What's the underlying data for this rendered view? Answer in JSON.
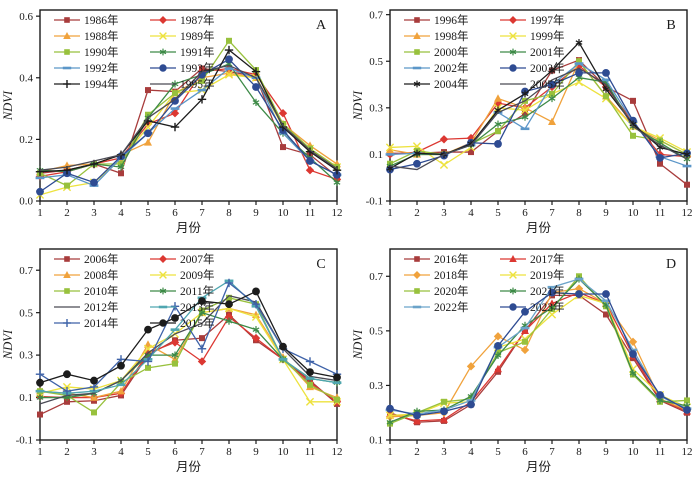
{
  "chart_data": [
    {
      "type": "line",
      "panel_label": "A",
      "xlabel": "月份",
      "ylabel": "NDVI",
      "x": [
        1,
        2,
        3,
        4,
        5,
        6,
        7,
        8,
        9,
        10,
        11,
        12
      ],
      "ylim": [
        0.0,
        0.62
      ],
      "yticks": [
        0.0,
        0.2,
        0.4,
        0.6
      ],
      "ytick_labels": [
        "0.0",
        "0.2",
        "0.4",
        "0.6"
      ],
      "xtick_labels": [
        "1",
        "2",
        "3",
        "4",
        "5",
        "6",
        "7",
        "8",
        "9",
        "10",
        "11",
        "12"
      ],
      "legend_position": "top-left",
      "legend_columns": 2,
      "grid": false,
      "series": [
        {
          "name": "1986年",
          "color": "#A83C3C",
          "marker": "square",
          "values": [
            0.09,
            0.1,
            0.12,
            0.09,
            0.36,
            0.355,
            0.43,
            0.42,
            0.405,
            0.175,
            0.15,
            0.08
          ]
        },
        {
          "name": "1987年",
          "color": "#DC3832",
          "marker": "diamond",
          "values": [
            0.08,
            0.095,
            0.12,
            0.14,
            0.25,
            0.285,
            0.42,
            0.43,
            0.41,
            0.285,
            0.1,
            0.07
          ]
        },
        {
          "name": "1988年",
          "color": "#F0A23C",
          "marker": "triangle",
          "values": [
            0.095,
            0.115,
            0.12,
            0.15,
            0.19,
            0.35,
            0.4,
            0.415,
            0.4,
            0.25,
            0.18,
            0.12
          ]
        },
        {
          "name": "1989年",
          "color": "#EDE23E",
          "marker": "x",
          "values": [
            0.02,
            0.045,
            0.06,
            0.135,
            0.24,
            0.35,
            0.36,
            0.41,
            0.4,
            0.24,
            0.17,
            0.11
          ]
        },
        {
          "name": "1990年",
          "color": "#98C13D",
          "marker": "square",
          "values": [
            0.09,
            0.05,
            0.12,
            0.12,
            0.28,
            0.35,
            0.39,
            0.52,
            0.425,
            0.25,
            0.17,
            0.11
          ]
        },
        {
          "name": "1991年",
          "color": "#3D8A47",
          "marker": "star",
          "values": [
            0.1,
            0.095,
            0.12,
            0.11,
            0.27,
            0.38,
            0.41,
            0.445,
            0.32,
            0.22,
            0.14,
            0.06
          ]
        },
        {
          "name": "1992年",
          "color": "#5B96C8",
          "marker": "dash",
          "values": [
            0.075,
            0.085,
            0.05,
            0.14,
            0.22,
            0.3,
            0.36,
            0.43,
            0.4,
            0.22,
            0.13,
            0.085
          ]
        },
        {
          "name": "1993年",
          "color": "#2E4B92",
          "marker": "circle",
          "values": [
            0.03,
            0.09,
            0.06,
            0.145,
            0.22,
            0.325,
            0.41,
            0.46,
            0.37,
            0.23,
            0.13,
            0.085
          ]
        },
        {
          "name": "1994年",
          "color": "#1C1C1C",
          "marker": "plus",
          "values": [
            0.095,
            0.1,
            0.12,
            0.15,
            0.26,
            0.24,
            0.33,
            0.49,
            0.42,
            0.24,
            0.16,
            0.1
          ]
        },
        {
          "name": "1995年",
          "color": "#4A4A55",
          "marker": "none",
          "values": [
            0.1,
            0.11,
            0.13,
            0.15,
            0.27,
            0.33,
            0.42,
            0.44,
            0.4,
            0.245,
            0.165,
            0.105
          ]
        }
      ]
    },
    {
      "type": "line",
      "panel_label": "B",
      "xlabel": "月份",
      "ylabel": "NDVI",
      "x": [
        1,
        2,
        3,
        4,
        5,
        6,
        7,
        8,
        9,
        10,
        11,
        12
      ],
      "ylim": [
        -0.1,
        0.72
      ],
      "yticks": [
        -0.1,
        0.1,
        0.3,
        0.5,
        0.7
      ],
      "ytick_labels": [
        "-0.1",
        "0.1",
        "0.3",
        "0.5",
        "0.7"
      ],
      "xtick_labels": [
        "1",
        "2",
        "3",
        "4",
        "5",
        "6",
        "7",
        "8",
        "9",
        "10",
        "11",
        "12"
      ],
      "legend_position": "top-left",
      "legend_columns": 2,
      "grid": false,
      "series": [
        {
          "name": "1996年",
          "color": "#A83C3C",
          "marker": "square",
          "values": [
            0.105,
            0.105,
            0.11,
            0.11,
            0.2,
            0.275,
            0.46,
            0.505,
            0.39,
            0.33,
            0.06,
            -0.03
          ]
        },
        {
          "name": "1997年",
          "color": "#DC3832",
          "marker": "diamond",
          "values": [
            0.1,
            0.11,
            0.165,
            0.17,
            0.32,
            0.3,
            0.39,
            0.48,
            0.39,
            0.24,
            0.1,
            0.09
          ]
        },
        {
          "name": "1998年",
          "color": "#F0A23C",
          "marker": "triangle",
          "values": [
            0.12,
            0.1,
            0.1,
            0.15,
            0.34,
            0.3,
            0.24,
            0.5,
            0.35,
            0.22,
            0.16,
            0.1
          ]
        },
        {
          "name": "1999年",
          "color": "#EDE23E",
          "marker": "x",
          "values": [
            0.13,
            0.135,
            0.055,
            0.13,
            0.3,
            0.29,
            0.36,
            0.41,
            0.34,
            0.22,
            0.17,
            0.11
          ]
        },
        {
          "name": "2000年",
          "color": "#98C13D",
          "marker": "square",
          "values": [
            0.06,
            0.115,
            0.1,
            0.145,
            0.2,
            0.33,
            0.36,
            0.5,
            0.35,
            0.18,
            0.16,
            0.1
          ]
        },
        {
          "name": "2001年",
          "color": "#3D8A47",
          "marker": "star",
          "values": [
            0.05,
            0.1,
            0.1,
            0.14,
            0.23,
            0.26,
            0.34,
            0.43,
            0.41,
            0.22,
            0.15,
            0.08
          ]
        },
        {
          "name": "2002年",
          "color": "#5B96C8",
          "marker": "dash",
          "values": [
            0.1,
            0.105,
            0.1,
            0.14,
            0.28,
            0.21,
            0.4,
            0.49,
            0.42,
            0.24,
            0.09,
            0.05
          ]
        },
        {
          "name": "2003年",
          "color": "#2E4B92",
          "marker": "circle",
          "values": [
            0.035,
            0.06,
            0.095,
            0.15,
            0.145,
            0.37,
            0.4,
            0.45,
            0.45,
            0.245,
            0.085,
            0.105
          ]
        },
        {
          "name": "2004年",
          "color": "#1C1C1C",
          "marker": "star",
          "values": [
            0.04,
            0.105,
            0.1,
            0.145,
            0.29,
            0.36,
            0.46,
            0.58,
            0.38,
            0.23,
            0.13,
            0.1
          ]
        },
        {
          "name": "2005年",
          "color": "#4A4A55",
          "marker": "none",
          "values": [
            0.05,
            0.035,
            0.1,
            0.14,
            0.28,
            0.33,
            0.42,
            0.47,
            0.4,
            0.22,
            0.14,
            0.08
          ]
        }
      ]
    },
    {
      "type": "line",
      "panel_label": "C",
      "xlabel": "月份",
      "ylabel": "NDVI",
      "x": [
        1,
        2,
        3,
        4,
        5,
        6,
        7,
        8,
        9,
        10,
        11,
        12
      ],
      "ylim": [
        -0.1,
        0.8
      ],
      "yticks": [
        -0.1,
        0.1,
        0.3,
        0.5,
        0.7
      ],
      "ytick_labels": [
        "-0.1",
        "0.1",
        "0.3",
        "0.5",
        "0.7"
      ],
      "xtick_labels": [
        "1",
        "2",
        "3",
        "4",
        "5",
        "6",
        "7",
        "8",
        "9",
        "10",
        "11",
        "12"
      ],
      "legend_position": "top-left",
      "legend_columns": 2,
      "grid": false,
      "series": [
        {
          "name": "2006年",
          "color": "#A83C3C",
          "marker": "square",
          "values": [
            0.02,
            0.08,
            0.085,
            0.11,
            0.3,
            0.37,
            0.38,
            0.49,
            0.37,
            0.28,
            0.18,
            0.07
          ]
        },
        {
          "name": "2007年",
          "color": "#DC3832",
          "marker": "diamond",
          "values": [
            0.105,
            0.1,
            0.1,
            0.12,
            0.31,
            0.36,
            0.27,
            0.48,
            0.38,
            0.28,
            0.17,
            0.08
          ]
        },
        {
          "name": "2008年",
          "color": "#F0A23C",
          "marker": "triangle",
          "values": [
            0.13,
            0.12,
            0.1,
            0.13,
            0.35,
            0.28,
            0.5,
            0.52,
            0.49,
            0.29,
            0.15,
            0.1
          ]
        },
        {
          "name": "2009年",
          "color": "#EDE23E",
          "marker": "x",
          "values": [
            0.12,
            0.15,
            0.14,
            0.18,
            0.33,
            0.4,
            0.5,
            0.52,
            0.48,
            0.28,
            0.08,
            0.08
          ]
        },
        {
          "name": "2010年",
          "color": "#98C13D",
          "marker": "square",
          "values": [
            0.13,
            0.11,
            0.03,
            0.17,
            0.24,
            0.26,
            0.51,
            0.57,
            0.54,
            0.28,
            0.16,
            0.09
          ]
        },
        {
          "name": "2011年",
          "color": "#3D8A47",
          "marker": "star",
          "values": [
            0.1,
            0.1,
            0.12,
            0.18,
            0.3,
            0.3,
            0.5,
            0.46,
            0.42,
            0.28,
            0.19,
            0.17
          ]
        },
        {
          "name": "2012年",
          "color": "#4A4A55",
          "marker": "none",
          "values": [
            0.07,
            0.11,
            0.12,
            0.18,
            0.31,
            0.4,
            0.45,
            0.58,
            0.55,
            0.33,
            0.2,
            0.18
          ]
        },
        {
          "name": "2013年",
          "color": "#4FA6B0",
          "marker": "dash",
          "values": [
            0.13,
            0.12,
            0.13,
            0.16,
            0.28,
            0.42,
            0.57,
            0.65,
            0.53,
            0.28,
            0.19,
            0.17
          ]
        },
        {
          "name": "2014年",
          "color": "#3E62A8",
          "marker": "plus",
          "values": [
            0.21,
            0.13,
            0.15,
            0.28,
            0.27,
            0.53,
            0.33,
            0.64,
            0.54,
            0.33,
            0.27,
            0.21
          ]
        },
        {
          "name": "2015年",
          "color": "#1C1C1C",
          "marker": "circle",
          "values": [
            0.17,
            0.21,
            0.18,
            0.25,
            0.42,
            0.475,
            0.555,
            0.54,
            0.6,
            0.34,
            0.22,
            0.195
          ]
        }
      ]
    },
    {
      "type": "line",
      "panel_label": "D",
      "xlabel": "月份",
      "ylabel": "NDVI",
      "x": [
        1,
        2,
        3,
        4,
        5,
        6,
        7,
        8,
        9,
        10,
        11,
        12
      ],
      "ylim": [
        0.1,
        0.8
      ],
      "yticks": [
        0.1,
        0.3,
        0.5,
        0.7
      ],
      "ytick_labels": [
        "0.1",
        "0.3",
        "0.5",
        "0.7"
      ],
      "xtick_labels": [
        "1",
        "2",
        "3",
        "4",
        "5",
        "6",
        "7",
        "8",
        "9",
        "10",
        "11",
        "12"
      ],
      "legend_position": "top-left",
      "legend_columns": 2,
      "grid": false,
      "series": [
        {
          "name": "2016年",
          "color": "#A83C3C",
          "marker": "square",
          "values": [
            0.2,
            0.165,
            0.17,
            0.23,
            0.35,
            0.5,
            0.63,
            0.63,
            0.56,
            0.4,
            0.245,
            0.2
          ]
        },
        {
          "name": "2017年",
          "color": "#DC3832",
          "marker": "triangle",
          "values": [
            0.195,
            0.17,
            0.175,
            0.24,
            0.36,
            0.5,
            0.6,
            0.64,
            0.6,
            0.41,
            0.25,
            0.205
          ]
        },
        {
          "name": "2018年",
          "color": "#F0A23C",
          "marker": "diamond",
          "values": [
            0.185,
            0.19,
            0.2,
            0.37,
            0.48,
            0.43,
            0.64,
            0.655,
            0.6,
            0.46,
            0.25,
            0.21
          ]
        },
        {
          "name": "2019年",
          "color": "#EDE23E",
          "marker": "x",
          "values": [
            0.19,
            0.195,
            0.235,
            0.24,
            0.44,
            0.47,
            0.56,
            0.63,
            0.6,
            0.36,
            0.265,
            0.22
          ]
        },
        {
          "name": "2020年",
          "color": "#98C13D",
          "marker": "square",
          "values": [
            0.16,
            0.2,
            0.24,
            0.25,
            0.42,
            0.46,
            0.58,
            0.7,
            0.59,
            0.34,
            0.24,
            0.245
          ]
        },
        {
          "name": "2021年",
          "color": "#3D8A47",
          "marker": "star",
          "values": [
            0.165,
            0.205,
            0.21,
            0.26,
            0.41,
            0.52,
            0.585,
            0.69,
            0.595,
            0.345,
            0.245,
            0.225
          ]
        },
        {
          "name": "2022年",
          "color": "#6BA3C9",
          "marker": "dash",
          "values": [
            0.21,
            0.195,
            0.21,
            0.245,
            0.44,
            0.51,
            0.66,
            0.69,
            0.61,
            0.43,
            0.26,
            0.215
          ]
        },
        {
          "name": "2023年",
          "color": "#2E4B92",
          "marker": "circle",
          "values": [
            0.215,
            0.19,
            0.205,
            0.23,
            0.445,
            0.57,
            0.64,
            0.635,
            0.635,
            0.415,
            0.265,
            0.21
          ]
        }
      ]
    }
  ]
}
